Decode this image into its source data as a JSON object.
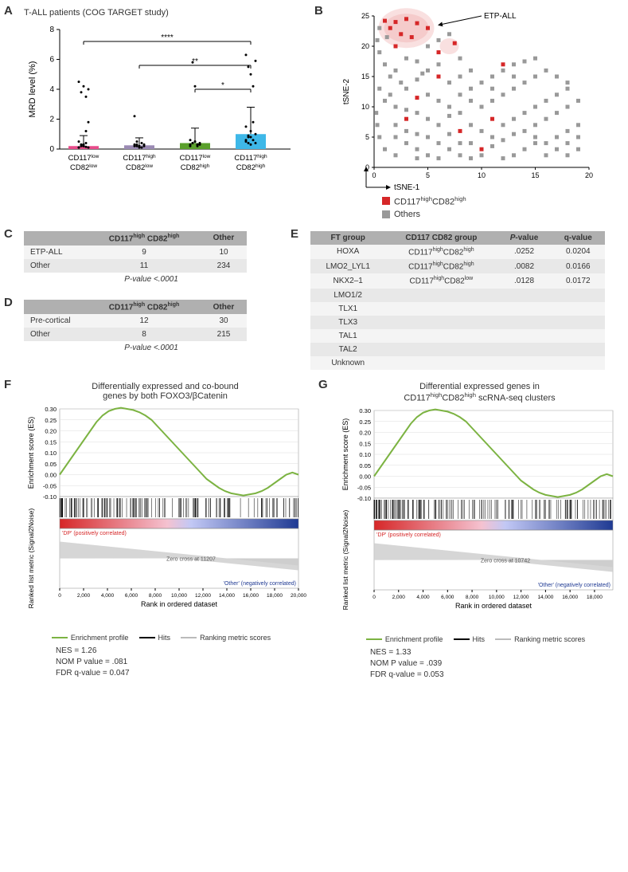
{
  "panelA": {
    "title": "T-ALL patients (COG TARGET study)",
    "ylabel": "MRD level (%)",
    "ylim": [
      0,
      8
    ],
    "yticks": [
      0,
      2,
      4,
      6,
      8
    ],
    "categories": [
      {
        "l1": "CD117",
        "s1": "low",
        "l2": "CD82",
        "s2": "low"
      },
      {
        "l1": "CD117",
        "s1": "high",
        "l2": "CD82",
        "s2": "low"
      },
      {
        "l1": "CD117",
        "s1": "low",
        "l2": "CD82",
        "s2": "high"
      },
      {
        "l1": "CD117",
        "s1": "high",
        "l2": "CD82",
        "s2": "high"
      }
    ],
    "bar_heights": [
      0.2,
      0.25,
      0.4,
      1.0
    ],
    "errors": [
      0.7,
      0.5,
      1.0,
      1.8
    ],
    "colors": [
      "#e84c8b",
      "#9b8bb4",
      "#5aa02c",
      "#3eb8e8"
    ],
    "sig": [
      {
        "from": 0,
        "to": 3,
        "label": "****",
        "y": 7.2
      },
      {
        "from": 1,
        "to": 3,
        "label": "**",
        "y": 5.6
      },
      {
        "from": 2,
        "to": 3,
        "label": "*",
        "y": 4.0
      }
    ],
    "scatter": [
      [
        0.1,
        0.3,
        0.2,
        0.4,
        0.1,
        0.5,
        0.3,
        0.2,
        1.2,
        4.0,
        4.5,
        3.8,
        4.2,
        3.5,
        1.8,
        0.1,
        0.2,
        0.3,
        0.15
      ],
      [
        0.2,
        0.3,
        0.1,
        0.4,
        0.2,
        0.3,
        0.5,
        0.2,
        0.1,
        0.3,
        2.2,
        0.2
      ],
      [
        0.3,
        0.4,
        0.5,
        0.2,
        0.3,
        0.6,
        0.4,
        0.5,
        0.3,
        0.4,
        0.2,
        5.8,
        4.2,
        0.3
      ],
      [
        0.5,
        0.8,
        1.2,
        0.6,
        0.4,
        1.5,
        0.9,
        0.3,
        1.8,
        5.9,
        6.3,
        5.5,
        5.0,
        4.2,
        1.0,
        0.6,
        0.4,
        0.8
      ]
    ]
  },
  "panelB": {
    "xlabel": "tSNE-1",
    "ylabel": "tSNE-2",
    "xlim": [
      0,
      20
    ],
    "ylim": [
      0,
      25
    ],
    "xticks": [
      0,
      5,
      10,
      15,
      20
    ],
    "yticks": [
      0,
      5,
      10,
      15,
      20,
      25
    ],
    "arrow_label": "ETP-ALL",
    "legend_red": "CD117",
    "legend_red_sup": "high",
    "legend_red2": "CD82",
    "legend_red2_sup": "high",
    "legend_grey": "Others",
    "colors": {
      "red": "#d62728",
      "grey": "#999999",
      "halo": "#f4c2c2"
    },
    "red_points": [
      [
        2,
        24
      ],
      [
        3,
        24.5
      ],
      [
        1.5,
        23
      ],
      [
        4,
        23.8
      ],
      [
        2.5,
        22
      ],
      [
        3.5,
        21.5
      ],
      [
        1,
        24.2
      ],
      [
        5,
        23
      ],
      [
        2,
        20
      ],
      [
        6,
        19
      ],
      [
        7.5,
        20.5
      ],
      [
        4,
        11.5
      ],
      [
        3,
        8
      ],
      [
        8,
        6
      ],
      [
        12,
        17
      ],
      [
        10,
        3
      ],
      [
        6,
        15
      ],
      [
        11,
        8
      ]
    ],
    "grey_points": [
      [
        0.5,
        19
      ],
      [
        1,
        17
      ],
      [
        2,
        16
      ],
      [
        3,
        18
      ],
      [
        4,
        17.5
      ],
      [
        1.5,
        15
      ],
      [
        2.5,
        14
      ],
      [
        3,
        13
      ],
      [
        4,
        14.5
      ],
      [
        5,
        16
      ],
      [
        6,
        17
      ],
      [
        5,
        12
      ],
      [
        6,
        11
      ],
      [
        7,
        10
      ],
      [
        8,
        12
      ],
      [
        9,
        13
      ],
      [
        10,
        14
      ],
      [
        11,
        15
      ],
      [
        12,
        16
      ],
      [
        13,
        17
      ],
      [
        14,
        17.5
      ],
      [
        15,
        18
      ],
      [
        16,
        16
      ],
      [
        17,
        15
      ],
      [
        18,
        14
      ],
      [
        4,
        9
      ],
      [
        5,
        8
      ],
      [
        6,
        7
      ],
      [
        7,
        8.5
      ],
      [
        8,
        9
      ],
      [
        9,
        7
      ],
      [
        10,
        6
      ],
      [
        11,
        5
      ],
      [
        12,
        7
      ],
      [
        13,
        8
      ],
      [
        14,
        9
      ],
      [
        15,
        10
      ],
      [
        16,
        11
      ],
      [
        17,
        12
      ],
      [
        18,
        13
      ],
      [
        2,
        5
      ],
      [
        3,
        4
      ],
      [
        4,
        3
      ],
      [
        5,
        2
      ],
      [
        6,
        4
      ],
      [
        7,
        3
      ],
      [
        8,
        2
      ],
      [
        9,
        4
      ],
      [
        10,
        2
      ],
      [
        11,
        3.5
      ],
      [
        12,
        4.5
      ],
      [
        13,
        5.5
      ],
      [
        14,
        6
      ],
      [
        15,
        7
      ],
      [
        16,
        8
      ],
      [
        17,
        9
      ],
      [
        18,
        10
      ],
      [
        19,
        11
      ],
      [
        1,
        11
      ],
      [
        2,
        10
      ],
      [
        3,
        9.5
      ],
      [
        0.5,
        13
      ],
      [
        1.5,
        12
      ],
      [
        4.5,
        15.5
      ],
      [
        7,
        14
      ],
      [
        8,
        15
      ],
      [
        9,
        16
      ],
      [
        10,
        10
      ],
      [
        11,
        11
      ],
      [
        12,
        12
      ],
      [
        13,
        13
      ],
      [
        14,
        14
      ],
      [
        15,
        15
      ],
      [
        16,
        4
      ],
      [
        17,
        5
      ],
      [
        18,
        6
      ],
      [
        19,
        7
      ],
      [
        6,
        21
      ],
      [
        7,
        22
      ],
      [
        5,
        20
      ],
      [
        8,
        18
      ],
      [
        0.3,
        21
      ],
      [
        0.5,
        23
      ],
      [
        1.2,
        21.5
      ],
      [
        13,
        2
      ],
      [
        14,
        3
      ],
      [
        15,
        4
      ],
      [
        16,
        2
      ],
      [
        17,
        3
      ],
      [
        18,
        4
      ],
      [
        19,
        5
      ],
      [
        2,
        7
      ],
      [
        3,
        6
      ],
      [
        4,
        5.5
      ],
      [
        5,
        5
      ],
      [
        7,
        5.5
      ],
      [
        9,
        11
      ],
      [
        11,
        13
      ],
      [
        13,
        15
      ],
      [
        15,
        5
      ],
      [
        18,
        2
      ],
      [
        19,
        3
      ],
      [
        12,
        1.5
      ],
      [
        9,
        1.5
      ],
      [
        8,
        4
      ],
      [
        6,
        1.5
      ],
      [
        4,
        1.5
      ],
      [
        2,
        2
      ],
      [
        1,
        3
      ],
      [
        0.5,
        5
      ],
      [
        0.3,
        7
      ],
      [
        0.2,
        9
      ]
    ]
  },
  "panelC": {
    "h1": "CD117",
    "h1s": "high",
    "h2": "CD82",
    "h2s": "high",
    "h3": "Other",
    "rows": [
      [
        "ETP-ALL",
        "9",
        "10"
      ],
      [
        "Other",
        "11",
        "234"
      ]
    ],
    "pval": "P-value <.0001"
  },
  "panelD": {
    "h1": "CD117",
    "h1s": "high",
    "h2": "CD82",
    "h2s": "high",
    "h3": "Other",
    "rows": [
      [
        "Pre-cortical",
        "12",
        "30"
      ],
      [
        "Other",
        "8",
        "215"
      ]
    ],
    "pval": "P-value <.0001"
  },
  "panelE": {
    "headers": [
      "FT group",
      "CD117 CD82 group",
      "P-value",
      "q-value"
    ],
    "rows": [
      [
        "HOXA",
        "CD117highCD82high",
        ".0252",
        "0.0204"
      ],
      [
        "LMO2_LYL1",
        "CD117highCD82high",
        ".0082",
        "0.0166"
      ],
      [
        "NKX2–1",
        "CD117highCD82low",
        ".0128",
        "0.0172"
      ],
      [
        "LMO1/2",
        "",
        "",
        ""
      ],
      [
        "TLX1",
        "",
        "",
        ""
      ],
      [
        "TLX3",
        "",
        "",
        ""
      ],
      [
        "TAL1",
        "",
        "",
        ""
      ],
      [
        "TAL2",
        "",
        "",
        ""
      ],
      [
        "Unknown",
        "",
        "",
        ""
      ]
    ],
    "sup_map": {
      "0": "high|high",
      "1": "high|high",
      "2": "high|low"
    }
  },
  "panelF": {
    "title": "Differentially expressed and co-bound\ngenes by both FOXO3/βCatenin",
    "nes": "NES = 1.26",
    "nom": "NOM P value = .081",
    "fdr": "FDR q-value = 0.047",
    "zero": "Zero cross at 11207",
    "ntotal": 20000,
    "pos": "'DP' (positively correlated)",
    "neg": "'Other' (negatively correlated)"
  },
  "panelG": {
    "title": "Differential expressed genes in\nCD117highCD82high scRNA-seq clusters",
    "nes": "NES = 1.33",
    "nom": "NOM P value = .039",
    "fdr": "FDR q-value = 0.053",
    "zero": "Zero cross at 10742",
    "ntotal": 19500,
    "pos": "'DP' (positively correlated)",
    "neg": "'Other' (negatively correlated)"
  },
  "gsea_common": {
    "ylabel_top": "Enrichment score (ES)",
    "ylabel_bot": "Ranked list metric (Signal2Noise)",
    "xlabel": "Rank in ordered dataset",
    "legend": [
      "Enrichment profile",
      "Hits",
      "Ranking metric scores"
    ],
    "es_curve": [
      0,
      0.04,
      0.08,
      0.12,
      0.16,
      0.2,
      0.24,
      0.27,
      0.29,
      0.3,
      0.305,
      0.3,
      0.295,
      0.285,
      0.27,
      0.25,
      0.22,
      0.19,
      0.16,
      0.13,
      0.1,
      0.07,
      0.04,
      0.01,
      -0.02,
      -0.04,
      -0.06,
      -0.075,
      -0.085,
      -0.09,
      -0.095,
      -0.09,
      -0.085,
      -0.075,
      -0.06,
      -0.04,
      -0.02,
      0.0,
      0.01,
      0.0
    ],
    "es_yticks": [
      -0.1,
      -0.05,
      0.0,
      0.05,
      0.1,
      0.15,
      0.2,
      0.25,
      0.3
    ],
    "colors": {
      "green": "#7cb342",
      "black": "#000",
      "grey": "#bbb",
      "red": "#d62728",
      "blue": "#1f3a93"
    }
  }
}
